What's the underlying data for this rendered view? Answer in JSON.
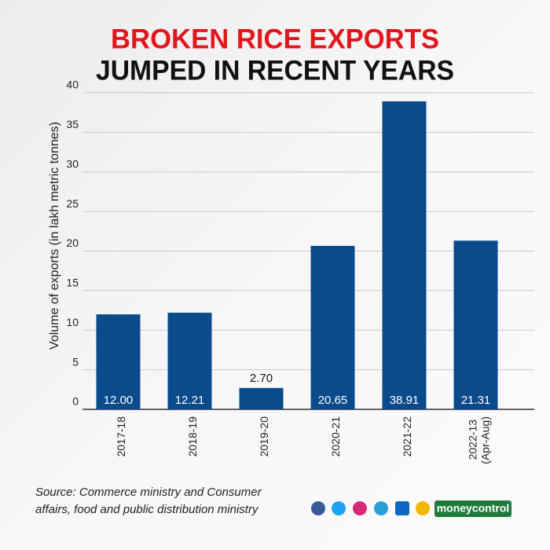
{
  "chart_data": {
    "type": "bar",
    "title_lines": [
      "BROKEN RICE EXPORTS",
      "JUMPED IN RECENT YEARS"
    ],
    "y_label": "Volume of exports (in lakh metric tonnes)",
    "categories": [
      "2017-18",
      "2018-19",
      "2019-20",
      "2020-21",
      "2021-22",
      "2022-13 (Apr-Aug)"
    ],
    "values": [
      12.0,
      12.21,
      2.7,
      20.65,
      38.91,
      21.31
    ],
    "value_labels": [
      "12.00",
      "12.21",
      "2.70",
      "20.65",
      "38.91",
      "21.31"
    ],
    "color": "#0b4a8b",
    "ylim": [
      0,
      40
    ],
    "yticks": [
      0,
      5,
      10,
      15,
      20,
      25,
      30,
      35,
      40
    ],
    "grid": true,
    "source": [
      "Source: Commerce ministry and Consumer",
      "affairs, food and public distribution ministry"
    ],
    "brand": "moneycontrol"
  }
}
